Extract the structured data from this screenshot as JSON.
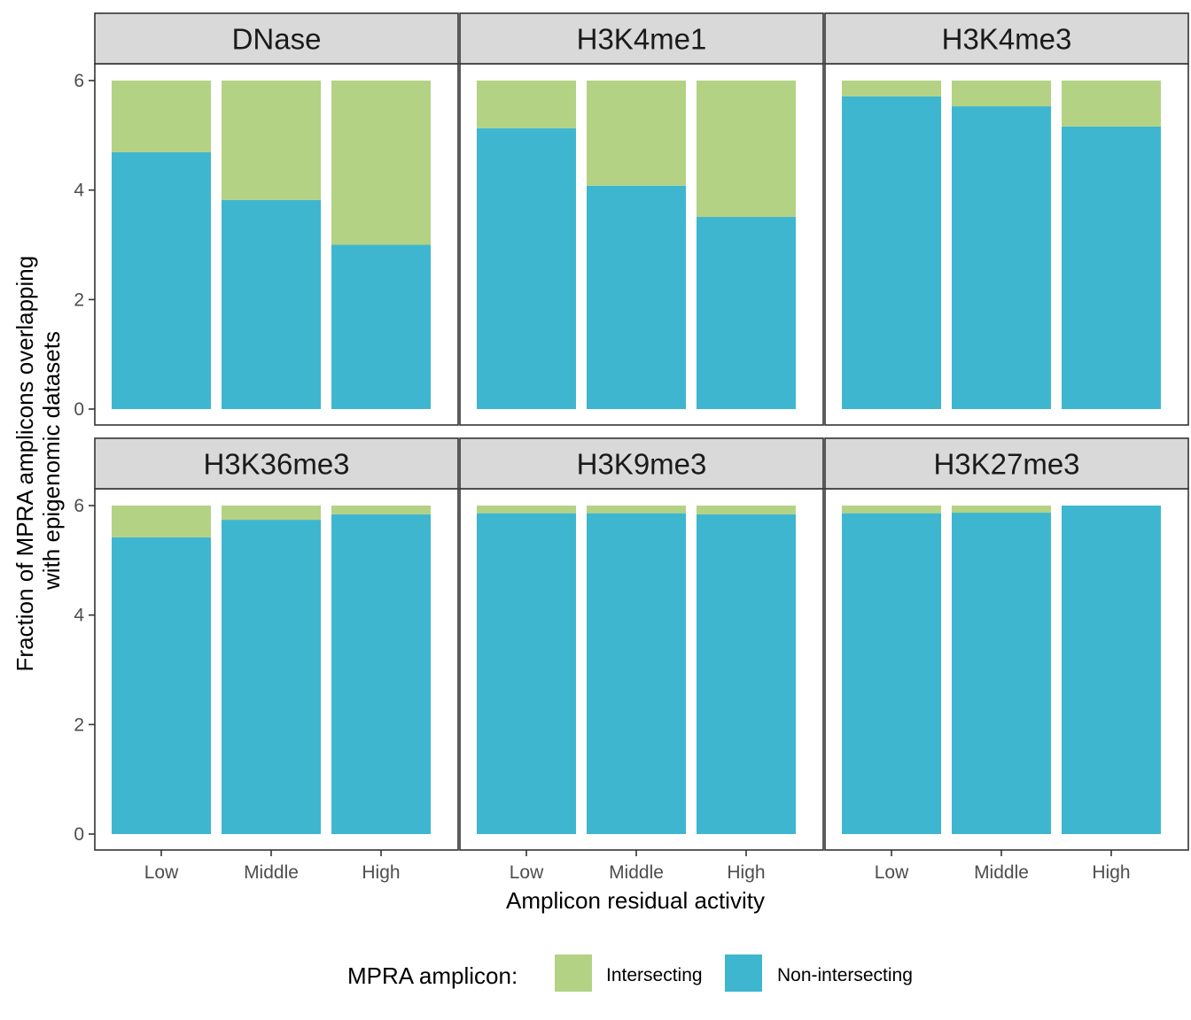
{
  "chart_data": {
    "type": "bar",
    "stacked": true,
    "ylabel_lines": [
      "Fraction of MPRA amplicons overlapping",
      "with epigenomic datasets"
    ],
    "xlabel": "Amplicon residual activity",
    "categories": [
      "Low",
      "Middle",
      "High"
    ],
    "ylim": [
      0,
      6
    ],
    "yticks": [
      0,
      2,
      4,
      6
    ],
    "grid": false,
    "legend": {
      "position": "bottom",
      "title": "MPRA amplicon:",
      "entries": [
        {
          "label": "Intersecting",
          "color": "#b3d284"
        },
        {
          "label": "Non-intersecting",
          "color": "#3fb6cf"
        }
      ]
    },
    "colors": {
      "intersecting": "#b3d284",
      "non_intersecting": "#3fb6cf",
      "strip_bg": "#d9d9d9",
      "border": "#333333"
    },
    "panels": [
      {
        "title": "DNase",
        "non_intersecting": [
          4.69,
          3.82,
          3.0
        ],
        "intersecting": [
          1.31,
          2.18,
          3.0
        ]
      },
      {
        "title": "H3K4me1",
        "non_intersecting": [
          5.13,
          4.08,
          3.51
        ],
        "intersecting": [
          0.87,
          1.92,
          2.49
        ]
      },
      {
        "title": "H3K4me3",
        "non_intersecting": [
          5.71,
          5.53,
          5.16
        ],
        "intersecting": [
          0.29,
          0.47,
          0.84
        ]
      },
      {
        "title": "H3K36me3",
        "non_intersecting": [
          5.42,
          5.74,
          5.84
        ],
        "intersecting": [
          0.58,
          0.26,
          0.16
        ]
      },
      {
        "title": "H3K9me3",
        "non_intersecting": [
          5.86,
          5.86,
          5.84
        ],
        "intersecting": [
          0.14,
          0.14,
          0.16
        ]
      },
      {
        "title": "H3K27me3",
        "non_intersecting": [
          5.86,
          5.87,
          6.0
        ],
        "intersecting": [
          0.14,
          0.13,
          0.0
        ]
      }
    ]
  }
}
